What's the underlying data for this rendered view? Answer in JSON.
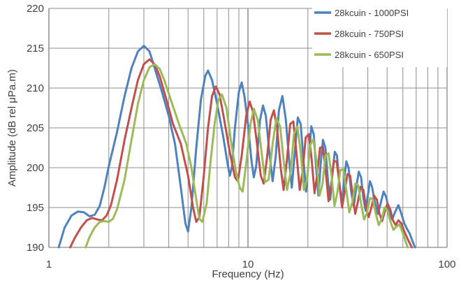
{
  "chart_data": {
    "type": "line",
    "title": "",
    "xlabel": "Frequency (Hz)",
    "ylabel": "Amplitude (dB rel μPa.m)",
    "x_scale": "log",
    "xlim": [
      1,
      100
    ],
    "ylim": [
      190,
      220
    ],
    "x_ticks": [
      {
        "value": 1,
        "label": "1"
      },
      {
        "value": 10,
        "label": "10"
      },
      {
        "value": 100,
        "label": "100"
      }
    ],
    "y_ticks": [
      190,
      195,
      200,
      205,
      210,
      215,
      220
    ],
    "grid": "log minor vertical gridlines, horizontal gridlines every 5 dB",
    "legend_position": "top-right",
    "series": [
      {
        "name": "28kcuin - 1000PSI",
        "color": "#4F81BD",
        "points": [
          [
            1.12,
            190
          ],
          [
            1.2,
            192.5
          ],
          [
            1.3,
            194.0
          ],
          [
            1.4,
            194.5
          ],
          [
            1.5,
            194.4
          ],
          [
            1.6,
            193.9
          ],
          [
            1.7,
            194.1
          ],
          [
            1.8,
            195.2
          ],
          [
            1.9,
            197.5
          ],
          [
            2.0,
            200.2
          ],
          [
            2.2,
            204.5
          ],
          [
            2.4,
            209.0
          ],
          [
            2.6,
            212.5
          ],
          [
            2.8,
            214.6
          ],
          [
            3.0,
            215.3
          ],
          [
            3.2,
            214.6
          ],
          [
            3.4,
            212.5
          ],
          [
            3.7,
            209.5
          ],
          [
            4.0,
            206.5
          ],
          [
            4.3,
            203.0
          ],
          [
            4.6,
            197.5
          ],
          [
            4.85,
            193.0
          ],
          [
            5.0,
            192.0
          ],
          [
            5.2,
            195.0
          ],
          [
            5.5,
            202.5
          ],
          [
            5.8,
            208.5
          ],
          [
            6.1,
            211.5
          ],
          [
            6.3,
            212.2
          ],
          [
            6.6,
            211.0
          ],
          [
            7.0,
            208.0
          ],
          [
            7.5,
            204.0
          ],
          [
            7.9,
            200.5
          ],
          [
            8.1,
            199.0
          ],
          [
            8.3,
            200.0
          ],
          [
            8.6,
            205.0
          ],
          [
            9.0,
            209.5
          ],
          [
            9.3,
            210.7
          ],
          [
            9.6,
            209.0
          ],
          [
            10.0,
            205.5
          ],
          [
            10.4,
            201.0
          ],
          [
            10.7,
            198.8
          ],
          [
            11.0,
            200.2
          ],
          [
            11.5,
            206.0
          ],
          [
            11.9,
            207.8
          ],
          [
            12.3,
            206.5
          ],
          [
            12.8,
            202.0
          ],
          [
            13.3,
            198.3
          ],
          [
            13.8,
            201.5
          ],
          [
            14.3,
            207.2
          ],
          [
            14.9,
            209.0
          ],
          [
            15.5,
            206.0
          ],
          [
            16.1,
            201.0
          ],
          [
            16.6,
            197.5
          ],
          [
            17.2,
            202.0
          ],
          [
            17.8,
            206.3
          ],
          [
            18.4,
            205.5
          ],
          [
            19.0,
            201.0
          ],
          [
            19.6,
            197.0
          ],
          [
            20.2,
            201.0
          ],
          [
            20.8,
            205.2
          ],
          [
            21.4,
            204.2
          ],
          [
            22.0,
            200.0
          ],
          [
            22.6,
            196.5
          ],
          [
            23.2,
            200.5
          ],
          [
            23.8,
            203.5
          ],
          [
            24.5,
            202.5
          ],
          [
            25.2,
            198.5
          ],
          [
            25.9,
            196.0
          ],
          [
            26.6,
            199.5
          ],
          [
            27.3,
            202.0
          ],
          [
            28.0,
            201.5
          ],
          [
            28.8,
            198.0
          ],
          [
            29.6,
            195.5
          ],
          [
            30.4,
            198.5
          ],
          [
            31.2,
            200.8
          ],
          [
            32.0,
            200.0
          ],
          [
            33.0,
            197.0
          ],
          [
            34.0,
            195.2
          ],
          [
            35.0,
            197.5
          ],
          [
            36.0,
            199.5
          ],
          [
            37.0,
            198.8
          ],
          [
            38.0,
            196.2
          ],
          [
            39.0,
            194.6
          ],
          [
            40.0,
            196.5
          ],
          [
            41.0,
            198.3
          ],
          [
            42.0,
            197.6
          ],
          [
            43.5,
            195.5
          ],
          [
            45.0,
            194.2
          ],
          [
            46.5,
            195.6
          ],
          [
            48.0,
            197.0
          ],
          [
            49.5,
            196.3
          ],
          [
            51.0,
            194.7
          ],
          [
            53.0,
            193.5
          ],
          [
            55.0,
            194.5
          ],
          [
            57.0,
            195.3
          ],
          [
            59.0,
            194.2
          ],
          [
            61.0,
            193.0
          ],
          [
            63.0,
            192.3
          ],
          [
            65.0,
            191.7
          ],
          [
            67.0,
            190.8
          ],
          [
            69.0,
            190.0
          ]
        ]
      },
      {
        "name": "28kcuin - 750PSI",
        "color": "#C0504D",
        "points": [
          [
            1.28,
            190
          ],
          [
            1.35,
            191.2
          ],
          [
            1.45,
            192.5
          ],
          [
            1.55,
            193.4
          ],
          [
            1.65,
            193.7
          ],
          [
            1.75,
            193.5
          ],
          [
            1.85,
            193.4
          ],
          [
            1.95,
            194.0
          ],
          [
            2.05,
            195.3
          ],
          [
            2.2,
            198.5
          ],
          [
            2.4,
            203.5
          ],
          [
            2.6,
            207.5
          ],
          [
            2.8,
            211.0
          ],
          [
            3.0,
            213.0
          ],
          [
            3.2,
            213.6
          ],
          [
            3.4,
            213.0
          ],
          [
            3.6,
            211.5
          ],
          [
            3.9,
            208.5
          ],
          [
            4.2,
            205.5
          ],
          [
            4.6,
            203.0
          ],
          [
            5.0,
            199.0
          ],
          [
            5.3,
            195.0
          ],
          [
            5.5,
            193.2
          ],
          [
            5.7,
            193.8
          ],
          [
            6.0,
            199.0
          ],
          [
            6.3,
            205.0
          ],
          [
            6.6,
            209.0
          ],
          [
            6.9,
            210.2
          ],
          [
            7.2,
            209.2
          ],
          [
            7.6,
            206.0
          ],
          [
            8.1,
            202.0
          ],
          [
            8.6,
            198.8
          ],
          [
            8.9,
            198.3
          ],
          [
            9.3,
            201.5
          ],
          [
            9.8,
            206.5
          ],
          [
            10.2,
            208.3
          ],
          [
            10.6,
            207.0
          ],
          [
            11.1,
            203.0
          ],
          [
            11.6,
            199.0
          ],
          [
            12.0,
            198.0
          ],
          [
            12.5,
            201.5
          ],
          [
            13.0,
            206.0
          ],
          [
            13.5,
            207.2
          ],
          [
            14.0,
            205.0
          ],
          [
            14.6,
            200.0
          ],
          [
            15.1,
            197.2
          ],
          [
            15.7,
            201.0
          ],
          [
            16.3,
            205.5
          ],
          [
            16.9,
            205.8
          ],
          [
            17.5,
            202.0
          ],
          [
            18.2,
            197.2
          ],
          [
            18.8,
            199.5
          ],
          [
            19.5,
            203.8
          ],
          [
            20.2,
            204.2
          ],
          [
            20.9,
            201.0
          ],
          [
            21.6,
            196.8
          ],
          [
            22.3,
            199.2
          ],
          [
            23.0,
            202.5
          ],
          [
            23.8,
            202.6
          ],
          [
            24.6,
            199.5
          ],
          [
            25.4,
            195.8
          ],
          [
            26.2,
            197.8
          ],
          [
            27.0,
            200.8
          ],
          [
            27.9,
            200.8
          ],
          [
            28.8,
            198.0
          ],
          [
            29.7,
            195.0
          ],
          [
            30.6,
            197.0
          ],
          [
            31.6,
            199.2
          ],
          [
            32.6,
            199.0
          ],
          [
            33.6,
            196.5
          ],
          [
            34.6,
            194.2
          ],
          [
            35.7,
            195.8
          ],
          [
            36.8,
            197.6
          ],
          [
            38.0,
            197.2
          ],
          [
            39.2,
            195.0
          ],
          [
            40.4,
            193.8
          ],
          [
            41.7,
            195.0
          ],
          [
            43.0,
            196.5
          ],
          [
            44.4,
            196.0
          ],
          [
            45.8,
            194.2
          ],
          [
            47.2,
            193.3
          ],
          [
            48.7,
            194.5
          ],
          [
            50.2,
            195.5
          ],
          [
            51.8,
            194.8
          ],
          [
            53.5,
            193.4
          ],
          [
            55.2,
            192.8
          ],
          [
            57.0,
            193.4
          ],
          [
            59.0,
            193.0
          ],
          [
            61.0,
            192.0
          ],
          [
            63.0,
            191.2
          ],
          [
            65.0,
            190.5
          ],
          [
            66.5,
            190.0
          ]
        ]
      },
      {
        "name": "28kcuin - 650PSI",
        "color": "#9BBB59",
        "points": [
          [
            1.53,
            190
          ],
          [
            1.6,
            191.3
          ],
          [
            1.7,
            192.5
          ],
          [
            1.8,
            193.2
          ],
          [
            1.9,
            193.3
          ],
          [
            2.0,
            193.2
          ],
          [
            2.1,
            193.6
          ],
          [
            2.2,
            194.8
          ],
          [
            2.4,
            198.5
          ],
          [
            2.6,
            203.5
          ],
          [
            2.8,
            208.0
          ],
          [
            3.0,
            211.0
          ],
          [
            3.2,
            212.6
          ],
          [
            3.4,
            213.0
          ],
          [
            3.6,
            212.4
          ],
          [
            3.8,
            211.0
          ],
          [
            4.1,
            208.5
          ],
          [
            4.5,
            205.5
          ],
          [
            4.9,
            203.0
          ],
          [
            5.2,
            200.0
          ],
          [
            5.5,
            196.0
          ],
          [
            5.7,
            193.6
          ],
          [
            5.9,
            193.2
          ],
          [
            6.2,
            195.5
          ],
          [
            6.5,
            201.0
          ],
          [
            6.8,
            205.5
          ],
          [
            7.1,
            208.5
          ],
          [
            7.4,
            209.2
          ],
          [
            7.8,
            207.5
          ],
          [
            8.2,
            203.5
          ],
          [
            8.7,
            199.5
          ],
          [
            9.1,
            197.5
          ],
          [
            9.4,
            197.0
          ],
          [
            9.8,
            200.5
          ],
          [
            10.3,
            205.5
          ],
          [
            10.7,
            207.4
          ],
          [
            11.2,
            206.0
          ],
          [
            11.7,
            202.0
          ],
          [
            12.2,
            198.2
          ],
          [
            12.7,
            198.5
          ],
          [
            13.3,
            203.0
          ],
          [
            13.9,
            206.2
          ],
          [
            14.5,
            205.2
          ],
          [
            15.1,
            201.0
          ],
          [
            15.7,
            197.2
          ],
          [
            16.4,
            199.5
          ],
          [
            17.0,
            204.2
          ],
          [
            17.7,
            205.2
          ],
          [
            18.4,
            202.0
          ],
          [
            19.1,
            197.2
          ],
          [
            19.8,
            198.5
          ],
          [
            20.5,
            202.8
          ],
          [
            21.3,
            203.6
          ],
          [
            22.1,
            200.8
          ],
          [
            22.9,
            196.5
          ],
          [
            23.7,
            198.0
          ],
          [
            24.5,
            201.5
          ],
          [
            25.4,
            201.8
          ],
          [
            26.3,
            199.0
          ],
          [
            27.2,
            195.2
          ],
          [
            28.1,
            196.8
          ],
          [
            29.1,
            199.7
          ],
          [
            30.1,
            199.8
          ],
          [
            31.2,
            197.2
          ],
          [
            32.3,
            194.4
          ],
          [
            33.4,
            195.6
          ],
          [
            34.6,
            198.0
          ],
          [
            35.8,
            197.8
          ],
          [
            37.0,
            195.5
          ],
          [
            38.3,
            193.5
          ],
          [
            39.6,
            194.3
          ],
          [
            41.0,
            196.2
          ],
          [
            42.4,
            196.0
          ],
          [
            43.9,
            194.2
          ],
          [
            45.4,
            192.8
          ],
          [
            47.0,
            193.6
          ],
          [
            48.6,
            195.0
          ],
          [
            50.3,
            194.6
          ],
          [
            52.0,
            193.2
          ],
          [
            53.8,
            192.2
          ],
          [
            55.7,
            192.6
          ],
          [
            57.6,
            192.9
          ],
          [
            59.6,
            192.0
          ],
          [
            61.6,
            190.9
          ],
          [
            63.5,
            190.0
          ]
        ]
      }
    ]
  }
}
